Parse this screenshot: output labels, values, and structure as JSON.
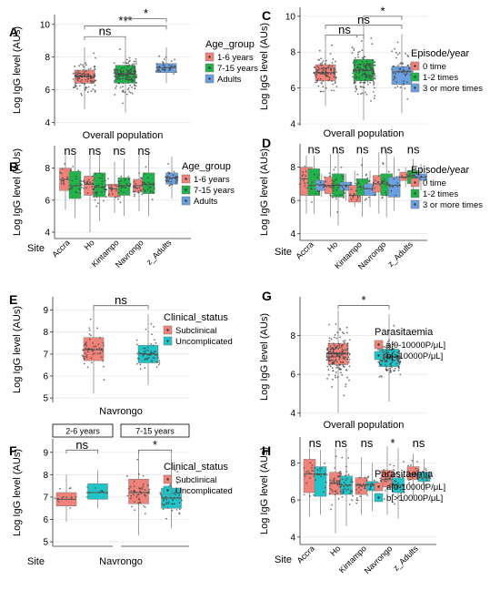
{
  "colors": {
    "red": "#f0827a",
    "green": "#21b34a",
    "blue": "#6a9fe0",
    "teal": "#20c3c6",
    "grid": "#e6e6e6",
    "axis": "#333333",
    "box_edge": "#555555",
    "point": "#444444"
  },
  "chart_data": [
    {
      "id": "A",
      "type": "box",
      "ylabel": "Log IgG level (AUs)",
      "xlabel": "Overall population",
      "site_label": "",
      "ylim": [
        3.8,
        10.6
      ],
      "yticks": [
        4,
        6,
        8,
        10
      ],
      "legend": {
        "title": "Age_group",
        "entries": [
          {
            "label": "1-6 years",
            "color": "#f0827a"
          },
          {
            "label": "7-15 years",
            "color": "#21b34a"
          },
          {
            "label": "Adults",
            "color": "#6a9fe0"
          }
        ]
      },
      "strips": [],
      "categories": [],
      "boxes": [
        {
          "cat": 0,
          "pos": 0.22,
          "color": "#f0827a",
          "q1": 6.4,
          "median": 6.8,
          "q3": 7.2,
          "lo": 4.8,
          "hi": 8.6,
          "n": 120
        },
        {
          "cat": 0,
          "pos": 0.52,
          "color": "#21b34a",
          "q1": 6.4,
          "median": 6.95,
          "q3": 7.5,
          "lo": 4.6,
          "hi": 9.0,
          "n": 160
        },
        {
          "cat": 0,
          "pos": 0.82,
          "color": "#6a9fe0",
          "q1": 7.05,
          "median": 7.35,
          "q3": 7.6,
          "lo": 6.4,
          "hi": 8.6,
          "n": 40
        }
      ],
      "sig": [
        {
          "label": "ns",
          "from": 0.22,
          "to": 0.52,
          "y": 9.25
        },
        {
          "label": "***",
          "from": 0.22,
          "to": 0.82,
          "y": 9.9
        },
        {
          "label": "*",
          "from": 0.52,
          "to": 0.82,
          "y": 10.35
        }
      ]
    },
    {
      "id": "B",
      "type": "box",
      "ylabel": "Log IgG level (AUs)",
      "xlabel": "",
      "site_label": "Site",
      "ylim": [
        3.6,
        9.4
      ],
      "yticks": [
        4,
        6,
        8
      ],
      "legend": {
        "title": "Age_group",
        "entries": [
          {
            "label": "1-6 years",
            "color": "#f0827a"
          },
          {
            "label": "7-15 years",
            "color": "#21b34a"
          },
          {
            "label": "Adults",
            "color": "#6a9fe0"
          }
        ]
      },
      "strips": [],
      "categories": [
        "Accra",
        "Ho",
        "Kintampo",
        "Navrongo",
        "z_Adults"
      ],
      "boxes": [
        {
          "cat": 0,
          "pos": 0.08,
          "color": "#f0827a",
          "q1": 6.6,
          "median": 7.3,
          "q3": 8.0,
          "lo": 5.4,
          "hi": 8.8,
          "n": 20
        },
        {
          "cat": 0,
          "pos": 0.15,
          "color": "#21b34a",
          "q1": 6.1,
          "median": 6.9,
          "q3": 7.8,
          "lo": 4.9,
          "hi": 8.8,
          "n": 22
        },
        {
          "cat": 1,
          "pos": 0.26,
          "color": "#f0827a",
          "q1": 6.3,
          "median": 7.0,
          "q3": 7.5,
          "lo": 4.0,
          "hi": 8.8,
          "n": 30
        },
        {
          "cat": 1,
          "pos": 0.33,
          "color": "#21b34a",
          "q1": 6.2,
          "median": 6.8,
          "q3": 7.7,
          "lo": 4.7,
          "hi": 8.9,
          "n": 40
        },
        {
          "cat": 2,
          "pos": 0.44,
          "color": "#f0827a",
          "q1": 6.2,
          "median": 6.7,
          "q3": 7.0,
          "lo": 5.2,
          "hi": 8.4,
          "n": 22
        },
        {
          "cat": 2,
          "pos": 0.51,
          "color": "#21b34a",
          "q1": 6.3,
          "median": 6.9,
          "q3": 7.4,
          "lo": 5.0,
          "hi": 8.6,
          "n": 26
        },
        {
          "cat": 3,
          "pos": 0.62,
          "color": "#f0827a",
          "q1": 6.5,
          "median": 6.9,
          "q3": 7.3,
          "lo": 5.3,
          "hi": 8.9,
          "n": 26
        },
        {
          "cat": 3,
          "pos": 0.69,
          "color": "#21b34a",
          "q1": 6.4,
          "median": 7.0,
          "q3": 7.7,
          "lo": 5.0,
          "hi": 9.0,
          "n": 30
        },
        {
          "cat": 4,
          "pos": 0.86,
          "color": "#6a9fe0",
          "q1": 7.0,
          "median": 7.4,
          "q3": 7.7,
          "lo": 6.1,
          "hi": 8.7,
          "n": 36
        }
      ],
      "sig_text": [
        {
          "label": "ns",
          "x": 0.115,
          "y": 9.05
        },
        {
          "label": "ns",
          "x": 0.295,
          "y": 9.05
        },
        {
          "label": "ns",
          "x": 0.475,
          "y": 9.05
        },
        {
          "label": "ns",
          "x": 0.655,
          "y": 9.05
        }
      ]
    },
    {
      "id": "C",
      "type": "box",
      "ylabel": "Log IgG level (AUs)",
      "xlabel": "Overall population",
      "site_label": "",
      "ylim": [
        3.9,
        10.5
      ],
      "yticks": [
        4,
        6,
        8,
        10
      ],
      "legend": {
        "title": "Episode/year",
        "entries": [
          {
            "label": "0 time",
            "color": "#f0827a"
          },
          {
            "label": "1-2 times",
            "color": "#21b34a"
          },
          {
            "label": "3 or more times",
            "color": "#6a9fe0"
          }
        ]
      },
      "strips": [],
      "categories": [],
      "boxes": [
        {
          "cat": 0,
          "pos": 0.2,
          "color": "#f0827a",
          "q1": 6.4,
          "median": 6.85,
          "q3": 7.3,
          "lo": 5.0,
          "hi": 8.8,
          "n": 110
        },
        {
          "cat": 0,
          "pos": 0.5,
          "color": "#21b34a",
          "q1": 6.4,
          "median": 7.0,
          "q3": 7.6,
          "lo": 4.2,
          "hi": 9.6,
          "n": 170
        },
        {
          "cat": 0,
          "pos": 0.8,
          "color": "#6a9fe0",
          "q1": 6.2,
          "median": 6.9,
          "q3": 7.2,
          "lo": 4.6,
          "hi": 9.0,
          "n": 60
        }
      ],
      "sig": [
        {
          "label": "ns",
          "from": 0.2,
          "to": 0.5,
          "y": 8.95
        },
        {
          "label": "ns",
          "from": 0.2,
          "to": 0.8,
          "y": 9.5
        },
        {
          "label": "*",
          "from": 0.5,
          "to": 0.8,
          "y": 10.0
        }
      ]
    },
    {
      "id": "D",
      "type": "box",
      "ylabel": "Log IgG level (AUs)",
      "xlabel": "",
      "site_label": "Site",
      "ylim": [
        3.6,
        9.4
      ],
      "yticks": [
        4,
        6,
        8
      ],
      "legend": {
        "title": "Episode/year",
        "entries": [
          {
            "label": "0 time",
            "color": "#f0827a"
          },
          {
            "label": "1-2 times",
            "color": "#21b34a"
          },
          {
            "label": "3 or more times",
            "color": "#6a9fe0"
          }
        ]
      },
      "strips": [],
      "categories": [
        "Accra",
        "Ho",
        "Kintampo",
        "Navrongo",
        "z_Adults"
      ],
      "boxes": [
        {
          "cat": 0,
          "pos": 0.05,
          "color": "#f0827a",
          "q1": 6.3,
          "median": 7.3,
          "q3": 8.0,
          "lo": 5.2,
          "hi": 8.7,
          "n": 18
        },
        {
          "cat": 0,
          "pos": 0.11,
          "color": "#21b34a",
          "q1": 6.3,
          "median": 6.9,
          "q3": 7.9,
          "lo": 5.2,
          "hi": 8.7,
          "n": 18
        },
        {
          "cat": 0,
          "pos": 0.17,
          "color": "#6a9fe0",
          "q1": 6.6,
          "median": 6.95,
          "q3": 7.2,
          "lo": 6.2,
          "hi": 7.6,
          "n": 8
        },
        {
          "cat": 1,
          "pos": 0.24,
          "color": "#f0827a",
          "q1": 6.4,
          "median": 6.9,
          "q3": 7.4,
          "lo": 5.0,
          "hi": 8.8,
          "n": 24
        },
        {
          "cat": 1,
          "pos": 0.3,
          "color": "#21b34a",
          "q1": 6.2,
          "median": 6.9,
          "q3": 7.6,
          "lo": 4.5,
          "hi": 8.9,
          "n": 40
        },
        {
          "cat": 1,
          "pos": 0.36,
          "color": "#6a9fe0",
          "q1": 6.6,
          "median": 6.9,
          "q3": 7.1,
          "lo": 6.0,
          "hi": 7.6,
          "n": 12
        },
        {
          "cat": 2,
          "pos": 0.43,
          "color": "#f0827a",
          "q1": 5.9,
          "median": 6.3,
          "q3": 6.9,
          "lo": 5.6,
          "hi": 7.8,
          "n": 14
        },
        {
          "cat": 2,
          "pos": 0.49,
          "color": "#21b34a",
          "q1": 6.3,
          "median": 6.8,
          "q3": 7.3,
          "lo": 5.0,
          "hi": 8.6,
          "n": 24
        },
        {
          "cat": 2,
          "pos": 0.55,
          "color": "#6a9fe0",
          "q1": 6.3,
          "median": 6.7,
          "q3": 7.0,
          "lo": 5.6,
          "hi": 7.8,
          "n": 12
        },
        {
          "cat": 3,
          "pos": 0.62,
          "color": "#f0827a",
          "q1": 6.5,
          "median": 7.0,
          "q3": 7.5,
          "lo": 5.2,
          "hi": 8.9,
          "n": 24
        },
        {
          "cat": 3,
          "pos": 0.68,
          "color": "#21b34a",
          "q1": 6.3,
          "median": 7.0,
          "q3": 7.6,
          "lo": 5.0,
          "hi": 9.0,
          "n": 26
        },
        {
          "cat": 3,
          "pos": 0.74,
          "color": "#6a9fe0",
          "q1": 6.2,
          "median": 6.9,
          "q3": 7.4,
          "lo": 5.4,
          "hi": 8.6,
          "n": 16
        },
        {
          "cat": 4,
          "pos": 0.83,
          "color": "#f0827a",
          "q1": 7.2,
          "median": 7.4,
          "q3": 7.7,
          "lo": 6.8,
          "hi": 8.0,
          "n": 8
        },
        {
          "cat": 4,
          "pos": 0.89,
          "color": "#21b34a",
          "q1": 7.0,
          "median": 7.5,
          "q3": 7.8,
          "lo": 6.2,
          "hi": 8.5,
          "n": 28
        },
        {
          "cat": 4,
          "pos": 0.95,
          "color": "#6a9fe0",
          "q1": 7.2,
          "median": 7.4,
          "q3": 7.6,
          "lo": 6.6,
          "hi": 8.2,
          "n": 8
        }
      ],
      "sig_text": [
        {
          "label": "ns",
          "x": 0.11,
          "y": 9.05
        },
        {
          "label": "ns",
          "x": 0.3,
          "y": 9.05
        },
        {
          "label": "ns",
          "x": 0.49,
          "y": 9.05
        },
        {
          "label": "ns",
          "x": 0.68,
          "y": 9.05
        },
        {
          "label": "ns",
          "x": 0.89,
          "y": 9.05
        }
      ]
    },
    {
      "id": "E",
      "type": "box",
      "ylabel": "Log IgG level (AUs)",
      "xlabel": "Navrongo",
      "site_label": "",
      "ylim": [
        4.8,
        9.6
      ],
      "yticks": [
        5,
        6,
        7,
        8,
        9
      ],
      "legend": {
        "title": "Clinical_status",
        "entries": [
          {
            "label": "Subclinical",
            "color": "#f0827a"
          },
          {
            "label": "Uncomplicated",
            "color": "#20c3c6"
          }
        ]
      },
      "strips": [],
      "categories": [],
      "boxes": [
        {
          "cat": 0,
          "pos": 0.3,
          "color": "#f0827a",
          "q1": 6.7,
          "median": 7.2,
          "q3": 7.75,
          "lo": 5.2,
          "hi": 9.1,
          "n": 60
        },
        {
          "cat": 0,
          "pos": 0.7,
          "color": "#20c3c6",
          "q1": 6.6,
          "median": 7.0,
          "q3": 7.4,
          "lo": 5.6,
          "hi": 8.8,
          "n": 60
        }
      ],
      "sig": [
        {
          "label": "ns",
          "from": 0.3,
          "to": 0.7,
          "y": 9.2
        }
      ]
    },
    {
      "id": "F",
      "type": "box",
      "ylabel": "Log IgG level (AUs)",
      "xlabel": "Navrongo",
      "site_label": "Site",
      "ylim": [
        4.8,
        9.6
      ],
      "yticks": [
        5,
        6,
        7,
        8,
        9
      ],
      "legend": {
        "title": "Clinical_status",
        "entries": [
          {
            "label": "Subclinical",
            "color": "#f0827a"
          },
          {
            "label": "Uncomplicated",
            "color": "#20c3c6"
          }
        ]
      },
      "strips": [
        {
          "label": "2-6 years",
          "from": 0.0,
          "to": 0.44
        },
        {
          "label": "7-15 years",
          "from": 0.5,
          "to": 1.0
        }
      ],
      "categories": [],
      "boxes": [
        {
          "cat": 0,
          "pos": 0.1,
          "color": "#f0827a",
          "q1": 6.6,
          "median": 6.9,
          "q3": 7.2,
          "lo": 5.9,
          "hi": 8.0,
          "n": 14
        },
        {
          "cat": 0,
          "pos": 0.33,
          "color": "#20c3c6",
          "q1": 6.9,
          "median": 7.2,
          "q3": 7.6,
          "lo": 6.5,
          "hi": 8.2,
          "n": 10
        },
        {
          "cat": 1,
          "pos": 0.63,
          "color": "#f0827a",
          "q1": 6.7,
          "median": 7.2,
          "q3": 7.8,
          "lo": 5.3,
          "hi": 9.1,
          "n": 50
        },
        {
          "cat": 1,
          "pos": 0.87,
          "color": "#20c3c6",
          "q1": 6.5,
          "median": 6.95,
          "q3": 7.4,
          "lo": 5.6,
          "hi": 8.9,
          "n": 50
        }
      ],
      "sig": [
        {
          "label": "ns",
          "from": 0.1,
          "to": 0.33,
          "y": 9.1
        },
        {
          "label": "*",
          "from": 0.63,
          "to": 0.87,
          "y": 9.1
        }
      ]
    },
    {
      "id": "G",
      "type": "box",
      "ylabel": "Log IgG level (AUs)",
      "xlabel": "Overall population",
      "site_label": "",
      "ylim": [
        3.8,
        10.0
      ],
      "yticks": [
        4,
        6,
        8
      ],
      "legend": {
        "title": "Parasitaemia",
        "entries": [
          {
            "label": "a[0-10000P/μL]",
            "color": "#f0827a"
          },
          {
            "label": "b[>10000P/μL]",
            "color": "#20c3c6"
          }
        ]
      },
      "strips": [],
      "categories": [],
      "boxes": [
        {
          "cat": 0,
          "pos": 0.3,
          "color": "#f0827a",
          "q1": 6.5,
          "median": 7.05,
          "q3": 7.6,
          "lo": 4.0,
          "hi": 9.3,
          "n": 190
        },
        {
          "cat": 0,
          "pos": 0.7,
          "color": "#20c3c6",
          "q1": 6.4,
          "median": 6.9,
          "q3": 7.3,
          "lo": 4.6,
          "hi": 9.1,
          "n": 150
        }
      ],
      "sig": [
        {
          "label": "*",
          "from": 0.3,
          "to": 0.7,
          "y": 9.55
        }
      ]
    },
    {
      "id": "H",
      "type": "box",
      "ylabel": "Log IgG level (AUs)",
      "xlabel": "",
      "site_label": "Site",
      "ylim": [
        3.6,
        9.4
      ],
      "yticks": [
        4,
        6,
        8
      ],
      "legend": {
        "title": "Parasitaemia",
        "entries": [
          {
            "label": "a[0-10000P/μL]",
            "color": "#f0827a"
          },
          {
            "label": "b[>10000P/μL]",
            "color": "#20c3c6"
          }
        ]
      },
      "strips": [],
      "categories": [
        "Accra",
        "Ho",
        "Kintampo",
        "Navrongo",
        "z_Adults"
      ],
      "boxes": [
        {
          "cat": 0,
          "pos": 0.07,
          "color": "#f0827a",
          "q1": 6.4,
          "median": 7.4,
          "q3": 8.2,
          "lo": 5.1,
          "hi": 8.8,
          "n": 20
        },
        {
          "cat": 0,
          "pos": 0.15,
          "color": "#20c3c6",
          "q1": 6.2,
          "median": 7.4,
          "q3": 7.8,
          "lo": 5.2,
          "hi": 8.7,
          "n": 20
        },
        {
          "cat": 1,
          "pos": 0.26,
          "color": "#f0827a",
          "q1": 6.3,
          "median": 6.9,
          "q3": 7.5,
          "lo": 4.2,
          "hi": 8.8,
          "n": 40
        },
        {
          "cat": 1,
          "pos": 0.34,
          "color": "#20c3c6",
          "q1": 6.3,
          "median": 6.8,
          "q3": 7.3,
          "lo": 4.6,
          "hi": 8.8,
          "n": 40
        },
        {
          "cat": 2,
          "pos": 0.45,
          "color": "#f0827a",
          "q1": 6.3,
          "median": 6.8,
          "q3": 7.2,
          "lo": 5.2,
          "hi": 8.3,
          "n": 24
        },
        {
          "cat": 2,
          "pos": 0.53,
          "color": "#20c3c6",
          "q1": 6.5,
          "median": 6.8,
          "q3": 7.0,
          "lo": 5.4,
          "hi": 8.0,
          "n": 20
        },
        {
          "cat": 3,
          "pos": 0.64,
          "color": "#f0827a",
          "q1": 6.7,
          "median": 7.1,
          "q3": 7.6,
          "lo": 5.2,
          "hi": 8.9,
          "n": 30
        },
        {
          "cat": 3,
          "pos": 0.72,
          "color": "#20c3c6",
          "q1": 6.4,
          "median": 6.8,
          "q3": 7.2,
          "lo": 5.0,
          "hi": 8.8,
          "n": 30
        },
        {
          "cat": 4,
          "pos": 0.83,
          "color": "#f0827a",
          "q1": 7.1,
          "median": 7.4,
          "q3": 7.8,
          "lo": 6.2,
          "hi": 8.5,
          "n": 24
        },
        {
          "cat": 4,
          "pos": 0.91,
          "color": "#20c3c6",
          "q1": 7.0,
          "median": 7.2,
          "q3": 7.5,
          "lo": 6.4,
          "hi": 8.2,
          "n": 18
        }
      ],
      "sig_text": [
        {
          "label": "ns",
          "x": 0.11,
          "y": 9.05
        },
        {
          "label": "ns",
          "x": 0.3,
          "y": 9.05
        },
        {
          "label": "ns",
          "x": 0.49,
          "y": 9.05
        },
        {
          "label": "*",
          "x": 0.68,
          "y": 9.05
        },
        {
          "label": "ns",
          "x": 0.87,
          "y": 9.05
        }
      ]
    }
  ]
}
